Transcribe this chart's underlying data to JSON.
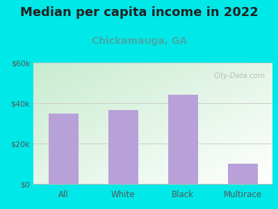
{
  "title": "Median per capita income in 2022",
  "subtitle": "Chickamauga, GA",
  "categories": [
    "All",
    "White",
    "Black",
    "Multirace"
  ],
  "values": [
    35000,
    36500,
    44000,
    10000
  ],
  "bar_color": "#b8a0d8",
  "bg_color": "#00e8e8",
  "plot_bg_topleft": "#c8ecd0",
  "plot_bg_bottomright": "#ffffff",
  "title_color": "#222222",
  "subtitle_color": "#44aaaa",
  "tick_color": "#555555",
  "grid_color": "#cccccc",
  "ylim": [
    0,
    60000
  ],
  "yticks": [
    0,
    20000,
    40000,
    60000
  ],
  "ytick_labels": [
    "$0",
    "$20k",
    "$40k",
    "$60k"
  ],
  "watermark": "City-Data.com",
  "title_fontsize": 13,
  "subtitle_fontsize": 10,
  "bar_width": 0.5
}
